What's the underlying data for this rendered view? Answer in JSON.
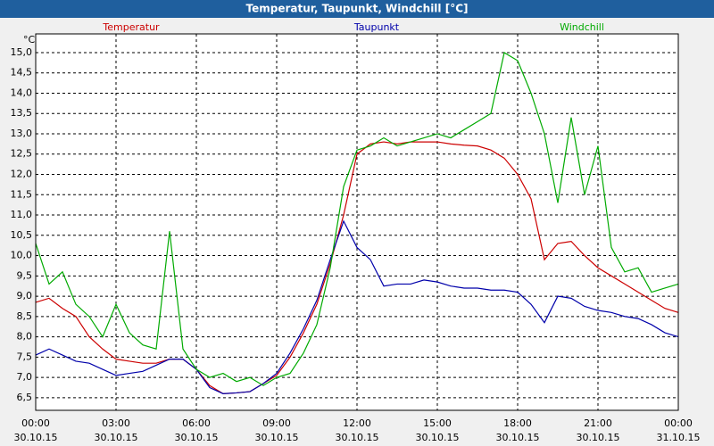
{
  "chart_data": {
    "type": "line",
    "title": "Temperatur, Taupunkt, Windchill [°C]",
    "y_unit": "°C",
    "x": [
      0,
      0.5,
      1,
      1.5,
      2,
      2.5,
      3,
      3.5,
      4,
      4.5,
      5,
      5.5,
      6,
      6.5,
      7,
      7.5,
      8,
      8.5,
      9,
      9.5,
      10,
      10.5,
      11,
      11.5,
      12,
      12.5,
      13,
      13.5,
      14,
      14.5,
      15,
      15.5,
      16,
      16.5,
      17,
      17.5,
      18,
      18.5,
      19,
      19.5,
      20,
      20.5,
      21,
      21.5,
      22,
      22.5,
      23,
      23.5,
      24
    ],
    "xlim": [
      0,
      24
    ],
    "xticks": [
      {
        "value": 0,
        "label": "00:00",
        "date": "30.10.15"
      },
      {
        "value": 3,
        "label": "03:00",
        "date": "30.10.15"
      },
      {
        "value": 6,
        "label": "06:00",
        "date": "30.10.15"
      },
      {
        "value": 9,
        "label": "09:00",
        "date": "30.10.15"
      },
      {
        "value": 12,
        "label": "12:00",
        "date": "30.10.15"
      },
      {
        "value": 15,
        "label": "15:00",
        "date": "30.10.15"
      },
      {
        "value": 18,
        "label": "18:00",
        "date": "30.10.15"
      },
      {
        "value": 21,
        "label": "21:00",
        "date": "30.10.15"
      },
      {
        "value": 24,
        "label": "00:00",
        "date": "31.10.15"
      }
    ],
    "ylim": [
      6.19,
      15.46
    ],
    "yticks": [
      {
        "value": 6.5,
        "label": "6,5"
      },
      {
        "value": 7,
        "label": "7,0"
      },
      {
        "value": 7.5,
        "label": "7,5"
      },
      {
        "value": 8,
        "label": "8,0"
      },
      {
        "value": 8.5,
        "label": "8,5"
      },
      {
        "value": 9,
        "label": "9,0"
      },
      {
        "value": 9.5,
        "label": "9,5"
      },
      {
        "value": 10,
        "label": "10,0"
      },
      {
        "value": 10.5,
        "label": "10,5"
      },
      {
        "value": 11,
        "label": "11,0"
      },
      {
        "value": 11.5,
        "label": "11,5"
      },
      {
        "value": 12,
        "label": "12,0"
      },
      {
        "value": 12.5,
        "label": "12,5"
      },
      {
        "value": 13,
        "label": "13,0"
      },
      {
        "value": 13.5,
        "label": "13,5"
      },
      {
        "value": 14,
        "label": "14,0"
      },
      {
        "value": 14.5,
        "label": "14,5"
      },
      {
        "value": 15,
        "label": "15,0"
      }
    ],
    "grid": true,
    "series": [
      {
        "name": "Temperatur",
        "color": "#cc0000",
        "values": [
          8.85,
          8.95,
          8.7,
          8.5,
          8.0,
          7.7,
          7.45,
          7.4,
          7.35,
          7.35,
          7.45,
          7.45,
          7.2,
          6.8,
          6.6,
          6.62,
          6.65,
          6.85,
          7.05,
          7.5,
          8.1,
          8.8,
          9.8,
          11.0,
          12.5,
          12.75,
          12.8,
          12.75,
          12.8,
          12.8,
          12.8,
          12.75,
          12.72,
          12.7,
          12.6,
          12.4,
          12.0,
          11.4,
          9.9,
          10.3,
          10.35,
          10.0,
          9.7,
          9.5,
          9.3,
          9.1,
          8.9,
          8.7,
          8.6
        ]
      },
      {
        "name": "Taupunkt",
        "color": "#0000aa",
        "values": [
          7.55,
          7.7,
          7.55,
          7.4,
          7.35,
          7.2,
          7.05,
          7.1,
          7.15,
          7.3,
          7.45,
          7.45,
          7.2,
          6.75,
          6.6,
          6.62,
          6.65,
          6.85,
          7.1,
          7.6,
          8.2,
          8.9,
          9.9,
          10.85,
          10.2,
          9.9,
          9.25,
          9.3,
          9.3,
          9.4,
          9.35,
          9.25,
          9.2,
          9.2,
          9.15,
          9.15,
          9.1,
          8.8,
          8.35,
          9.0,
          8.95,
          8.75,
          8.65,
          8.6,
          8.5,
          8.45,
          8.3,
          8.1,
          8.0
        ]
      },
      {
        "name": "Windchill",
        "color": "#00aa00",
        "values": [
          10.3,
          9.3,
          9.6,
          8.8,
          8.5,
          8.0,
          8.8,
          8.1,
          7.8,
          7.7,
          10.6,
          7.7,
          7.2,
          7.0,
          7.1,
          6.9,
          7.0,
          6.8,
          7.0,
          7.1,
          7.6,
          8.3,
          9.7,
          11.7,
          12.6,
          12.7,
          12.9,
          12.7,
          12.8,
          12.9,
          13.0,
          12.9,
          13.1,
          13.3,
          13.5,
          15.0,
          14.8,
          14.0,
          13.0,
          11.3,
          13.4,
          11.5,
          12.7,
          10.2,
          9.6,
          9.7,
          9.1,
          9.2,
          9.3
        ]
      }
    ]
  }
}
